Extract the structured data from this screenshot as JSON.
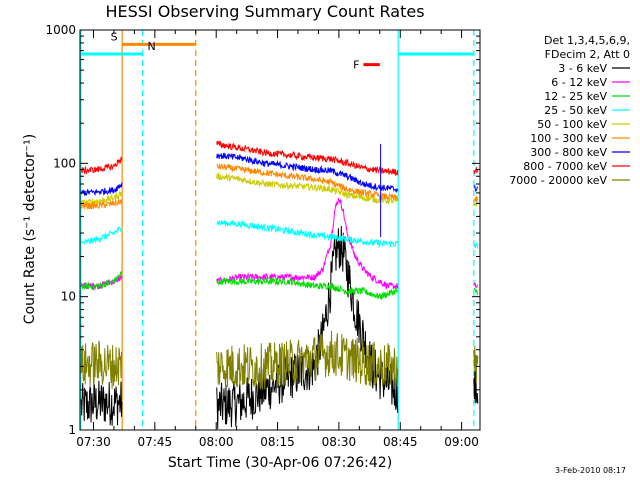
{
  "chart_data": {
    "type": "line",
    "title": "HESSI Observing Summary Count Rates",
    "xlabel": "Start Time (30-Apr-06 07:26:42)",
    "ylabel": "Count Rate (s⁻¹ detector⁻¹)",
    "x_ticks": [
      "07:30",
      "07:45",
      "08:00",
      "08:15",
      "08:30",
      "08:45",
      "09:00"
    ],
    "x_tick_minutes": [
      30,
      45,
      60,
      75,
      90,
      105,
      120
    ],
    "x_range_minutes": [
      26.7,
      124.5
    ],
    "y_scale": "log",
    "ylim": [
      1,
      1000
    ],
    "y_ticks": [
      1,
      10,
      100,
      1000
    ],
    "y_tick_labels": [
      "1",
      "10",
      "100",
      "1000"
    ],
    "legend": {
      "position": "right",
      "header": [
        "Det 1,3,4,5,6,9,",
        "FDecim 2, Att 0"
      ]
    },
    "gaps_minutes": [
      [
        37.0,
        60.0
      ],
      [
        104.5,
        123.0
      ]
    ],
    "series": [
      {
        "name": "3 - 6 keV",
        "color": "#000000",
        "x": [
          27,
          31,
          35,
          37,
          60,
          66,
          72,
          78,
          84,
          86,
          88,
          89,
          90,
          91,
          92,
          94,
          96,
          98,
          100,
          102,
          104,
          123,
          124
        ],
        "y": [
          1.5,
          1.6,
          1.6,
          1.6,
          1.5,
          1.6,
          2.0,
          2.5,
          3.0,
          5.0,
          12,
          20,
          24,
          22,
          16,
          8,
          5,
          3,
          2.5,
          2.2,
          2.0,
          2.0,
          2.0
        ]
      },
      {
        "name": "6 - 12 keV",
        "color": "#ff00ff",
        "x": [
          27,
          31,
          35,
          37,
          60,
          66,
          72,
          78,
          84,
          86,
          88,
          89,
          90,
          91,
          92,
          94,
          96,
          98,
          100,
          102,
          104,
          123,
          124
        ],
        "y": [
          12,
          12,
          13,
          14,
          13,
          14,
          14,
          14,
          14,
          16,
          25,
          45,
          55,
          45,
          30,
          20,
          16,
          14,
          13,
          12,
          12,
          12,
          12
        ]
      },
      {
        "name": "12 - 25 keV",
        "color": "#00dd00",
        "x": [
          27,
          31,
          35,
          37,
          60,
          66,
          72,
          78,
          84,
          88,
          92,
          96,
          100,
          104,
          123,
          124
        ],
        "y": [
          12,
          12,
          13,
          15,
          13,
          13,
          13,
          13,
          12,
          12,
          11,
          11,
          10,
          11,
          11,
          11
        ]
      },
      {
        "name": "25 - 50 keV",
        "color": "#00ffff",
        "x": [
          27,
          31,
          35,
          37,
          60,
          66,
          72,
          78,
          84,
          88,
          92,
          96,
          100,
          104,
          123,
          124
        ],
        "y": [
          25,
          27,
          30,
          33,
          36,
          35,
          33,
          31,
          29,
          28,
          27,
          26,
          25,
          25,
          24,
          24
        ]
      },
      {
        "name": "50 - 100 keV",
        "color": "#cccc00",
        "x": [
          27,
          31,
          35,
          37,
          60,
          66,
          72,
          78,
          84,
          88,
          92,
          96,
          100,
          104,
          123,
          124
        ],
        "y": [
          50,
          52,
          55,
          60,
          80,
          76,
          70,
          68,
          66,
          64,
          58,
          55,
          53,
          52,
          50,
          50
        ]
      },
      {
        "name": "100 - 300 keV",
        "color": "#ff8800",
        "x": [
          27,
          31,
          35,
          37,
          60,
          66,
          72,
          78,
          84,
          88,
          92,
          96,
          100,
          104,
          123,
          124
        ],
        "y": [
          48,
          48,
          50,
          52,
          95,
          90,
          85,
          80,
          76,
          72,
          64,
          60,
          57,
          55,
          53,
          53
        ]
      },
      {
        "name": "300 - 800 keV",
        "color": "#0000ff",
        "x": [
          27,
          31,
          35,
          37,
          60,
          66,
          72,
          78,
          84,
          88,
          92,
          96,
          100,
          104,
          123,
          124
        ],
        "y": [
          60,
          61,
          63,
          70,
          115,
          110,
          100,
          95,
          90,
          88,
          80,
          70,
          66,
          64,
          64,
          66
        ]
      },
      {
        "name": "800 - 7000 keV",
        "color": "#ff0000",
        "x": [
          27,
          31,
          35,
          37,
          60,
          66,
          72,
          78,
          84,
          88,
          92,
          96,
          100,
          104,
          123,
          124
        ],
        "y": [
          88,
          90,
          95,
          110,
          140,
          130,
          120,
          115,
          110,
          108,
          100,
          92,
          88,
          86,
          88,
          90
        ]
      },
      {
        "name": "7000 - 20000 keV",
        "color": "#808000",
        "x": [
          27,
          31,
          35,
          37,
          60,
          66,
          72,
          78,
          84,
          88,
          92,
          96,
          100,
          104,
          123,
          124
        ],
        "y": [
          3.0,
          3.2,
          3.0,
          3.2,
          3.0,
          3.0,
          3.0,
          3.2,
          3.5,
          3.8,
          3.5,
          3.2,
          3.0,
          3.0,
          3.0,
          3.0
        ]
      }
    ],
    "annotations": [
      {
        "label": "S",
        "color": "#ff8800",
        "x_start": 37.0,
        "x_end": 55.0,
        "y": 780
      },
      {
        "label": "N",
        "color": "#00ffff",
        "x_start": 26.7,
        "x_end": 42.0,
        "y": 660
      },
      {
        "label": "F",
        "color": "#ff0000",
        "x_start": 96.0,
        "x_end": 100.0,
        "y": 550
      }
    ],
    "markers": [
      {
        "x": 37.0,
        "color": "#ff8800",
        "style": "solid"
      },
      {
        "x": 42.0,
        "color": "#00ffff",
        "style": "dashed"
      },
      {
        "x": 55.0,
        "color": "#ff8800",
        "style": "dashed"
      },
      {
        "x": 104.5,
        "color": "#00ffff",
        "style": "solid"
      },
      {
        "x": 123.0,
        "color": "#00ffff",
        "style": "dashed"
      },
      {
        "x": 26.9,
        "color": "#00ffff",
        "style": "solid"
      }
    ],
    "spike": {
      "x": 100.2,
      "y": 140,
      "color": "#0000ff"
    }
  },
  "footer": "3-Feb-2010 08:17"
}
